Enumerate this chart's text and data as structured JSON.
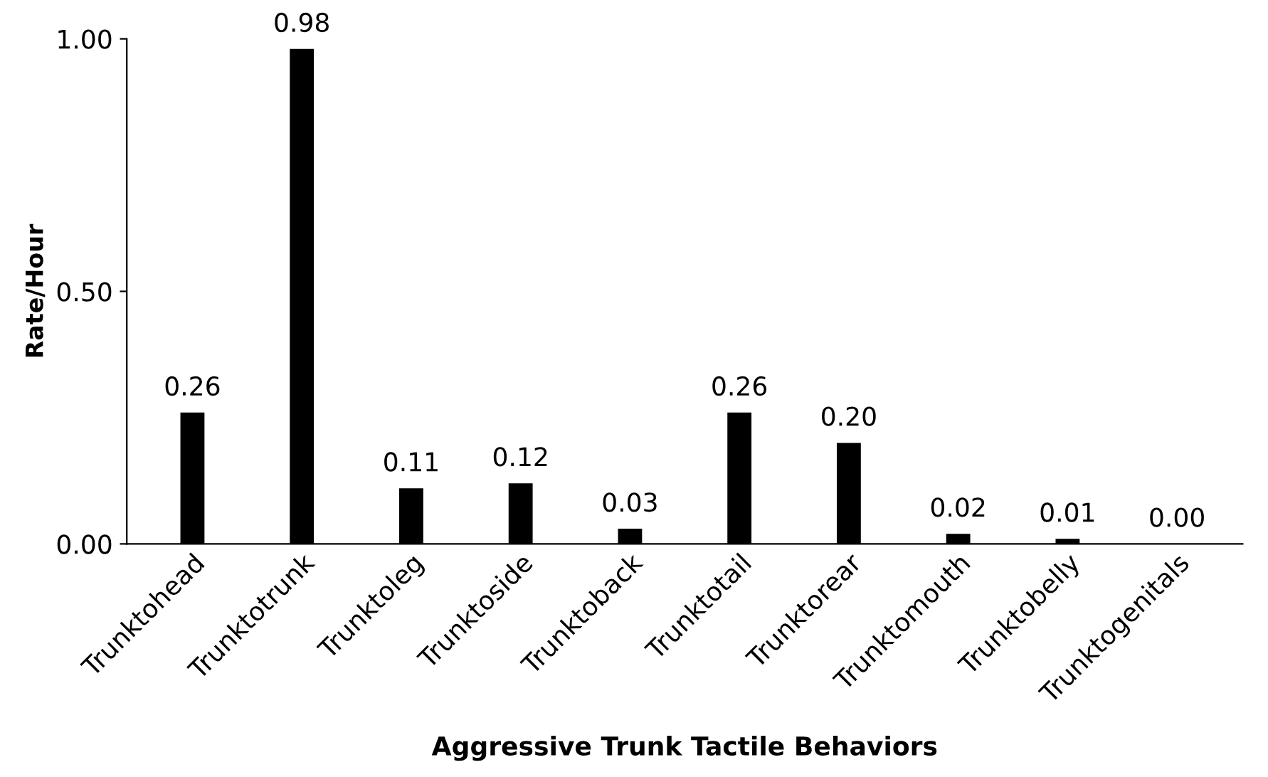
{
  "chart_data": {
    "type": "bar",
    "xlabel": "Aggressive Trunk Tactile Behaviors",
    "ylabel": "Rate/Hour",
    "categories": [
      "Trunktohead",
      "Trunktotrunk",
      "Trunktoleg",
      "Trunktoside",
      "Trunktoback",
      "Trunktotail",
      "Trunktorear",
      "Trunktomouth",
      "Trunktobelly",
      "Trunktogenitals"
    ],
    "values": [
      0.26,
      0.98,
      0.11,
      0.12,
      0.03,
      0.26,
      0.2,
      0.02,
      0.01,
      0.0
    ],
    "value_labels": [
      "0.26",
      "0.98",
      "0.11",
      "0.12",
      "0.03",
      "0.26",
      "0.20",
      "0.02",
      "0.01",
      "0.00"
    ],
    "color": "#000000",
    "ylim": [
      0,
      1.0
    ],
    "yticks": [
      {
        "value": 0,
        "label": "0.00"
      },
      {
        "value": 0.5,
        "label": "0.50"
      },
      {
        "value": 1.0,
        "label": "1.00"
      }
    ],
    "grid": false,
    "legend": false
  }
}
